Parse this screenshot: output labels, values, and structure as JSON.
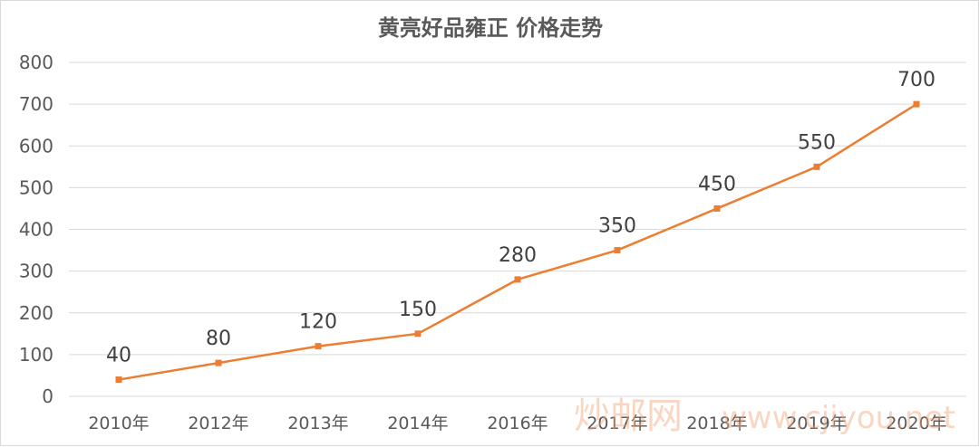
{
  "chart_data": {
    "type": "line",
    "title": "黄亮好品雍正 价格走势",
    "categories": [
      "2010年",
      "2012年",
      "2013年",
      "2014年",
      "2016年",
      "2017年",
      "2018年",
      "2019年",
      "2020年"
    ],
    "series": [
      {
        "values": [
          40,
          80,
          120,
          150,
          280,
          350,
          450,
          550,
          700
        ]
      }
    ],
    "data_labels": [
      "40",
      "80",
      "120",
      "150",
      "280",
      "350",
      "450",
      "550",
      "700"
    ],
    "ylim": [
      0,
      800
    ],
    "yticks": [
      "0",
      "100",
      "200",
      "300",
      "400",
      "500",
      "600",
      "700",
      "800"
    ],
    "grid": true,
    "line_color": "#ED7D31",
    "xlabel": "",
    "ylabel": ""
  },
  "watermark": {
    "text_cn": "炒邮网",
    "text_url": "www.cjiyou.net"
  }
}
